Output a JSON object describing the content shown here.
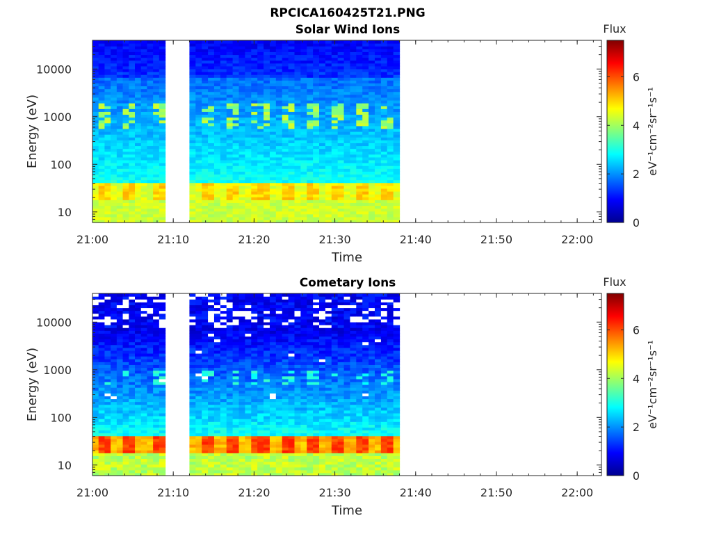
{
  "figure_title": "RPCICA160425T21.PNG",
  "colors": {
    "colormap": [
      "#00008f",
      "#0000ff",
      "#0080ff",
      "#00ffff",
      "#80ff80",
      "#ffff00",
      "#ff8000",
      "#ff0000",
      "#800000"
    ],
    "frame": "#262626",
    "background": "#ffffff"
  },
  "chart_data": [
    {
      "type": "heatmap",
      "title": "Solar Wind Ions",
      "xlabel": "Time",
      "ylabel": "Energy (eV)",
      "y_scale": "log",
      "ylim": [
        6,
        40000
      ],
      "xlim": [
        "21:00",
        "22:03"
      ],
      "x_ticks": [
        "21:00",
        "21:10",
        "21:20",
        "21:30",
        "21:40",
        "21:50",
        "22:00"
      ],
      "y_ticks": [
        "10",
        "100",
        "1000",
        "10000"
      ],
      "data_intervals": [
        [
          "21:00",
          "21:09"
        ],
        [
          "21:12",
          "21:38"
        ]
      ],
      "flux_band_energy_eV": [
        18,
        40
      ],
      "flux_band_peak": 5.0,
      "secondary_band_energy_eV": [
        600,
        2000
      ],
      "colorbar": {
        "label": "Flux",
        "units": "eV⁻¹cm⁻²sr⁻¹s⁻¹",
        "range": [
          0,
          7.5
        ],
        "ticks": [
          "0",
          "2",
          "4",
          "6"
        ]
      }
    },
    {
      "type": "heatmap",
      "title": "Cometary Ions",
      "xlabel": "Time",
      "ylabel": "Energy (eV)",
      "y_scale": "log",
      "ylim": [
        6,
        40000
      ],
      "xlim": [
        "21:00",
        "22:03"
      ],
      "x_ticks": [
        "21:00",
        "21:10",
        "21:20",
        "21:30",
        "21:40",
        "21:50",
        "22:00"
      ],
      "y_ticks": [
        "10",
        "100",
        "1000",
        "10000"
      ],
      "data_intervals": [
        [
          "21:00",
          "21:09"
        ],
        [
          "21:12",
          "21:38"
        ]
      ],
      "flux_band_energy_eV": [
        18,
        40
      ],
      "flux_band_peak": 6.2,
      "colorbar": {
        "label": "Flux",
        "units": "eV⁻¹cm⁻²sr⁻¹s⁻¹",
        "range": [
          0,
          7.5
        ],
        "ticks": [
          "0",
          "2",
          "4",
          "6"
        ]
      }
    }
  ]
}
